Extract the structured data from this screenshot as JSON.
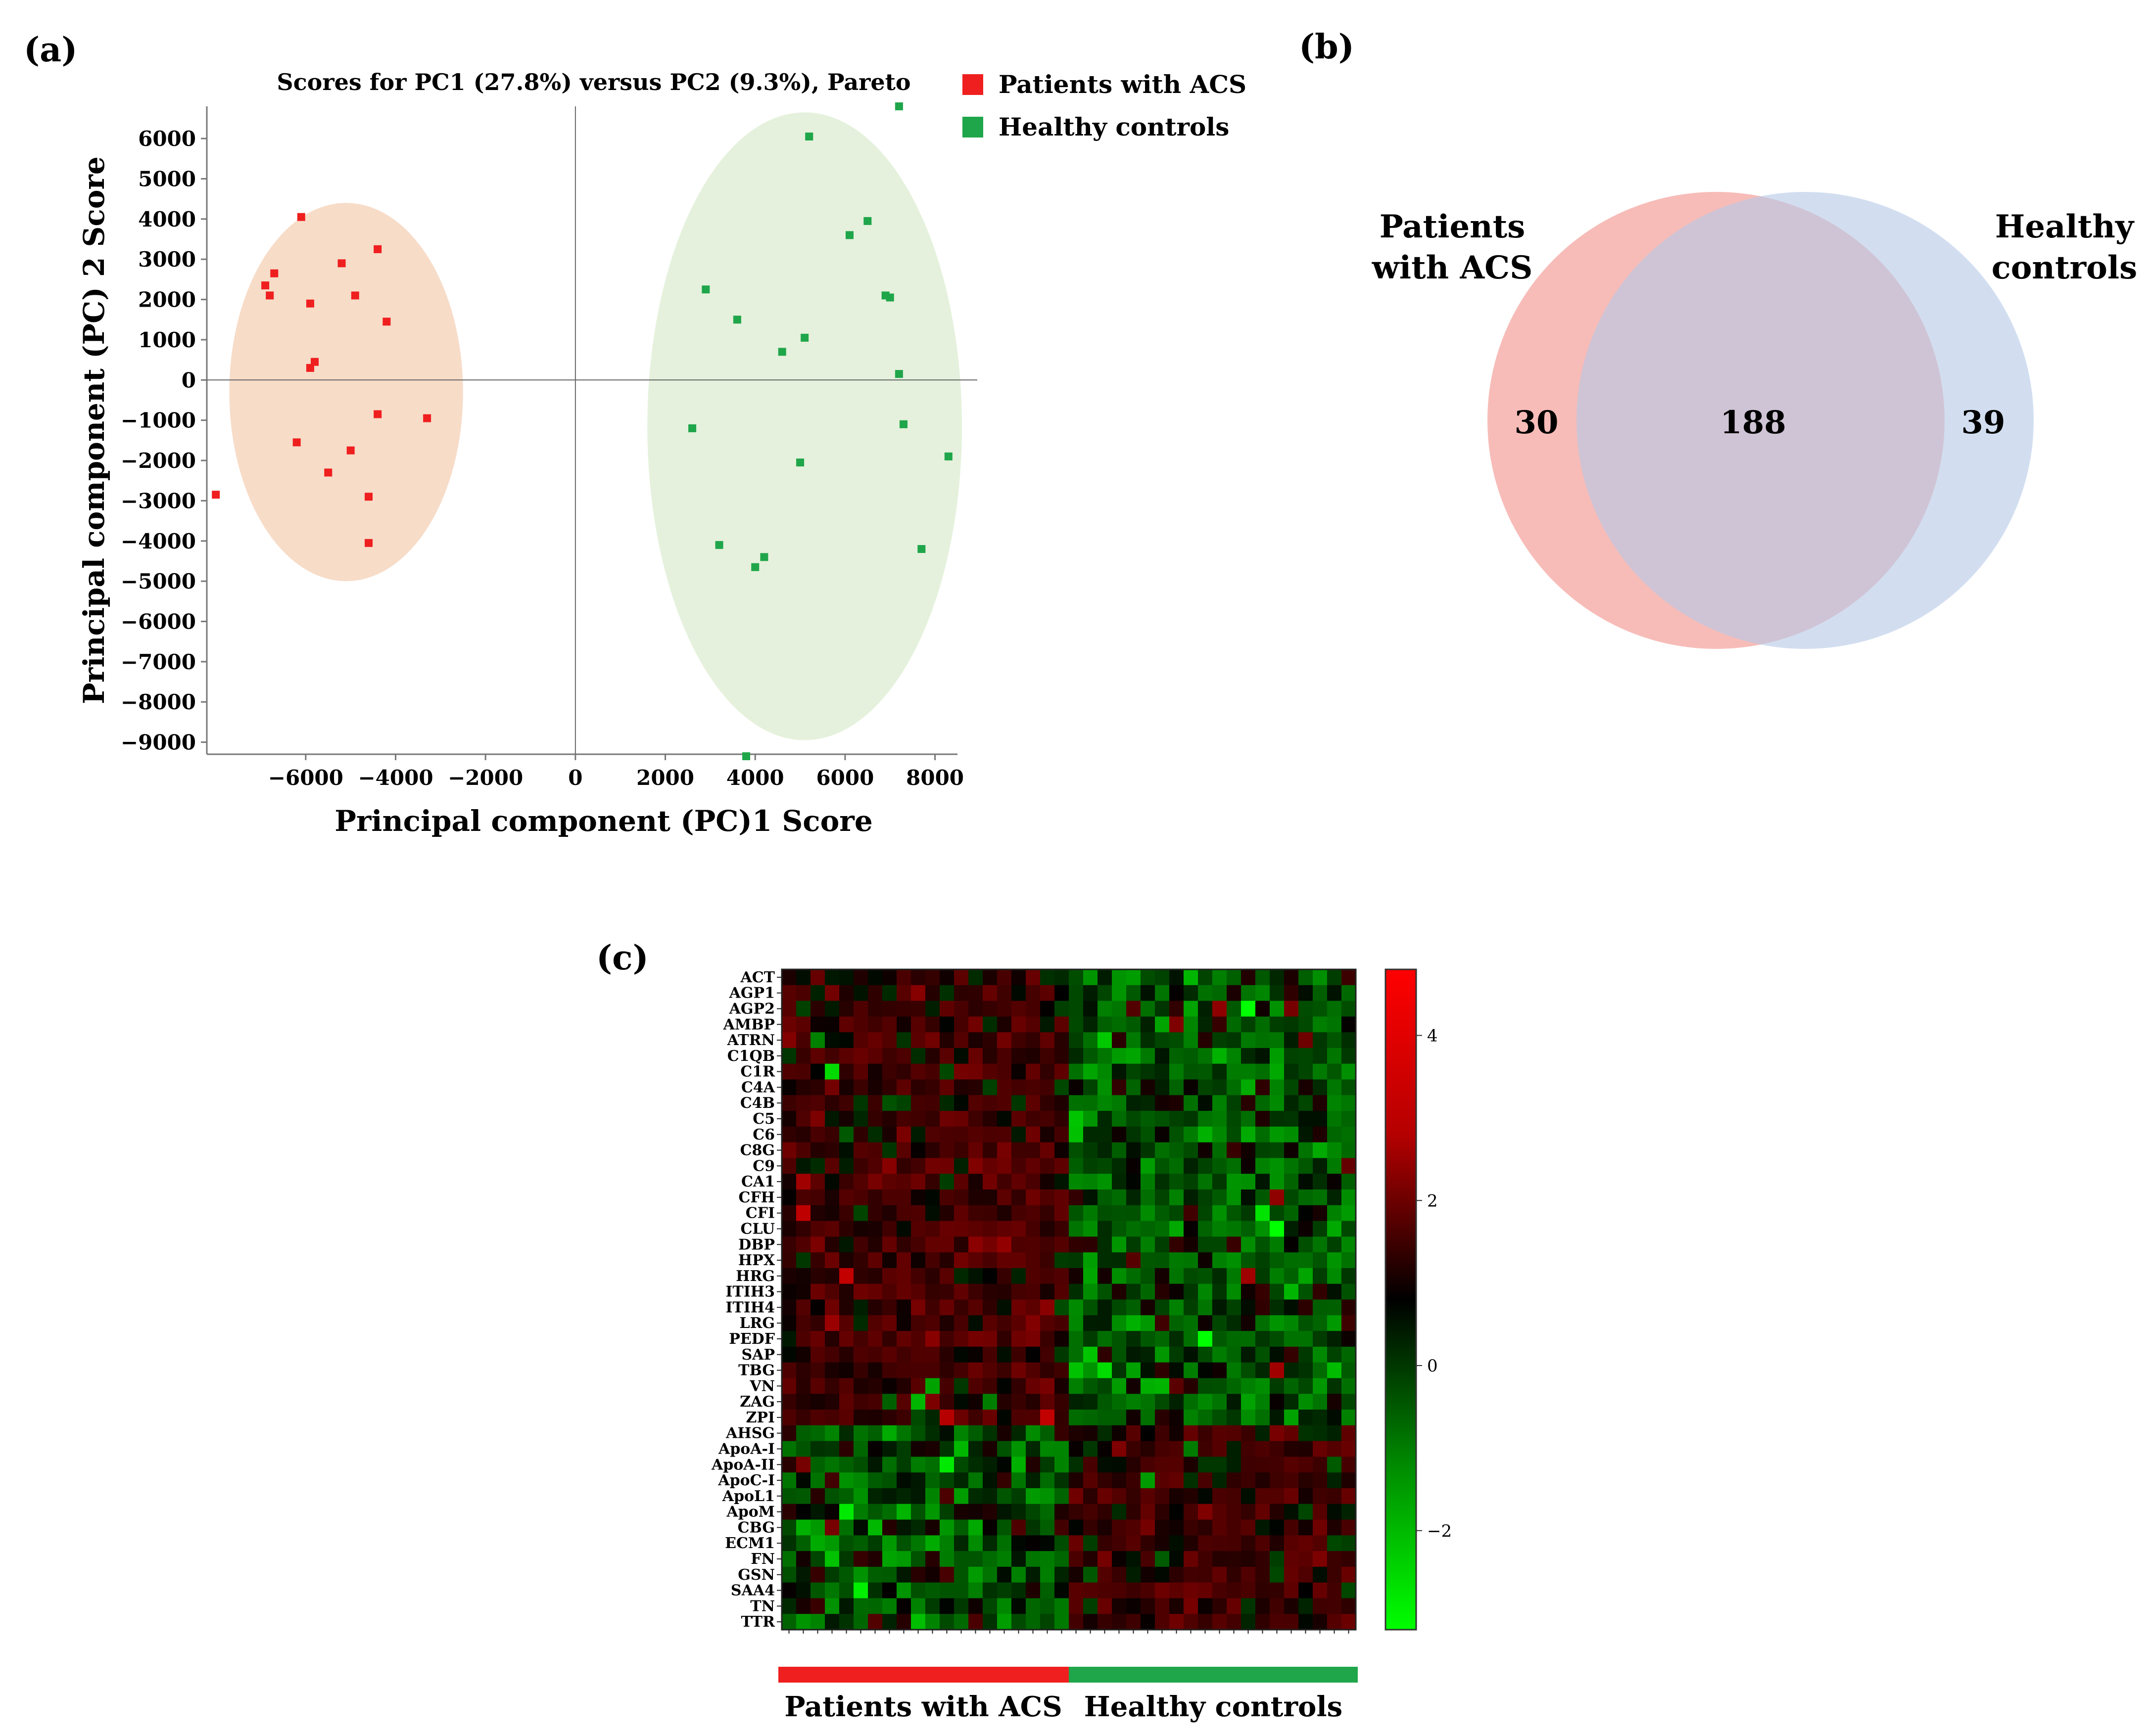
{
  "panels": {
    "a": "(a)",
    "b": "(b)",
    "c": "(c)"
  },
  "colors": {
    "acs": "#ef1f1f",
    "healthy": "#1fa64a",
    "acs_ellipse": "#f7dcc8",
    "healthy_ellipse": "#e5f1dc",
    "venn_acs": "#f4a6a0",
    "venn_healthy": "#b7c9e6"
  },
  "chart_data": [
    {
      "type": "scatter",
      "title": "Scores for PC1 (27.8%) versus PC2 (9.3%), Pareto",
      "xlabel": "Principal component (PC)1 Score",
      "ylabel": "Principal component (PC) 2 Score",
      "xlim": [
        -8200,
        8500
      ],
      "ylim": [
        -9300,
        6800
      ],
      "xticks": [
        -6000,
        -4000,
        -2000,
        0,
        2000,
        4000,
        6000,
        8000
      ],
      "xtick_labels": [
        "−6000",
        "−4000",
        "−2000",
        "0",
        "2000",
        "4000",
        "6000",
        "8000"
      ],
      "yticks": [
        6000,
        5000,
        4000,
        3000,
        2000,
        1000,
        0,
        -1000,
        -2000,
        -3000,
        -4000,
        -5000,
        -6000,
        -7000,
        -8000,
        -9000
      ],
      "ytick_labels": [
        "6000",
        "5000",
        "4000",
        "3000",
        "2000",
        "1000",
        "0",
        "−1000",
        "−2000",
        "−3000",
        "−4000",
        "−5000",
        "−6000",
        "−7000",
        "−8000",
        "−9000"
      ],
      "legend": [
        "Patients with ACS",
        "Healthy controls"
      ],
      "series": [
        {
          "name": "Patients with ACS",
          "x": [
            -6100,
            -6700,
            -6900,
            -6800,
            -5200,
            -4400,
            -4900,
            -5900,
            -4200,
            -5800,
            -5900,
            -4400,
            -3300,
            -6200,
            -5000,
            -5500,
            -4600,
            -4600,
            -8000
          ],
          "y": [
            4050,
            2650,
            2350,
            2100,
            2900,
            3250,
            2100,
            1900,
            1450,
            450,
            300,
            -850,
            -950,
            -1550,
            -1750,
            -2300,
            -2900,
            -4050,
            -2850
          ]
        },
        {
          "name": "Healthy controls",
          "x": [
            7200,
            5200,
            6500,
            6100,
            2900,
            6900,
            7000,
            3600,
            5100,
            4600,
            7200,
            2600,
            7300,
            8300,
            5000,
            3200,
            4200,
            4000,
            7700,
            3800
          ],
          "y": [
            6800,
            6050,
            3950,
            3600,
            2250,
            2100,
            2050,
            1500,
            1050,
            700,
            150,
            -1200,
            -1100,
            -1900,
            -2050,
            -4100,
            -4400,
            -4650,
            -4200,
            -9350
          ]
        }
      ],
      "ellipses": [
        {
          "group": "Patients with ACS",
          "cx": -5100,
          "cy": -300,
          "rx": 2600,
          "ry": 4700
        },
        {
          "group": "Healthy controls",
          "cx": 5100,
          "cy": -1150,
          "rx": 3500,
          "ry": 7800
        }
      ]
    },
    {
      "type": "venn",
      "sets": [
        "Patients with ACS",
        "Healthy controls"
      ],
      "set_labels": [
        [
          "Patients",
          "with ACS"
        ],
        [
          "Healthy",
          "controls"
        ]
      ],
      "only_a": 30,
      "both": 188,
      "only_b": 39
    },
    {
      "type": "heatmap",
      "rows": [
        "ACT",
        "AGP1",
        "AGP2",
        "AMBP",
        "ATRN",
        "C1QB",
        "C1R",
        "C4A",
        "C4B",
        "C5",
        "C6",
        "C8G",
        "C9",
        "CA1",
        "CFH",
        "CFI",
        "CLU",
        "DBP",
        "HPX",
        "HRG",
        "ITIH3",
        "ITIH4",
        "LRG",
        "PEDF",
        "SAP",
        "TBG",
        "VN",
        "ZAG",
        "ZPI",
        "AHSG",
        "ApoA-I",
        "ApoA-II",
        "ApoC-I",
        "ApoL1",
        "ApoM",
        "CBG",
        "ECM1",
        "FN",
        "GSN",
        "SAA4",
        "TN",
        "TTR"
      ],
      "n_columns": 40,
      "n_patients": 20,
      "groups": [
        "Patients with ACS",
        "Healthy controls"
      ],
      "colorbar_ticks": [
        4,
        2,
        0,
        -2
      ],
      "colorbar_tick_labels": [
        "4",
        "2",
        "0",
        "−2"
      ],
      "value_range": [
        -3.2,
        4.8
      ],
      "up_in_acs_rows": 29,
      "seed": 20240517
    }
  ]
}
